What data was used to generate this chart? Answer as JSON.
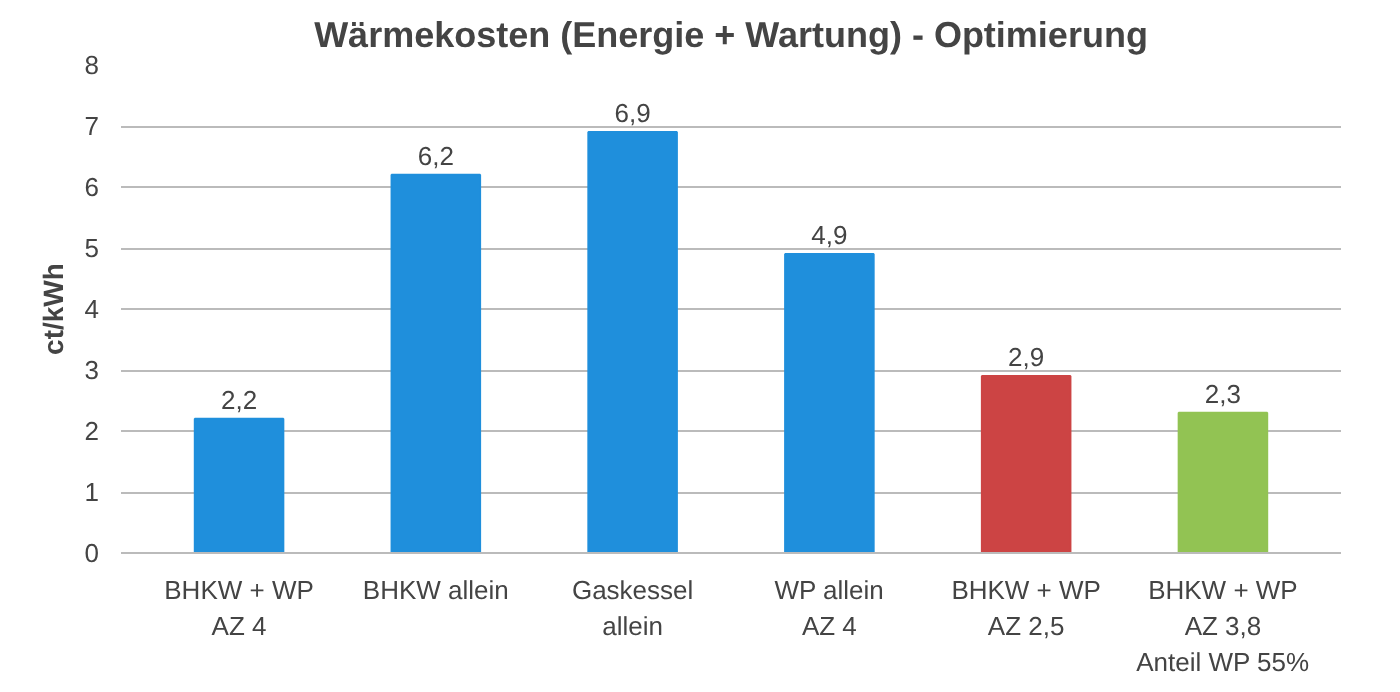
{
  "chart_data": {
    "type": "bar",
    "title": "Wärmekosten (Energie + Wartung) - Optimierung",
    "ylabel": "ct/kWh",
    "categories": [
      "BHKW + WP\nAZ 4",
      "BHKW allein",
      "Gaskessel\nallein",
      "WP allein\nAZ 4",
      "BHKW + WP\nAZ 2,5",
      "BHKW + WP\nAZ 3,8\nAnteil WP 55%"
    ],
    "values": [
      2.2,
      6.2,
      6.9,
      4.9,
      2.9,
      2.3
    ],
    "colors": [
      "#1f8fdc",
      "#1f8fdc",
      "#1f8fdc",
      "#1f8fdc",
      "#cc4444",
      "#92c353"
    ],
    "value_labels": [
      "2,2",
      "6,2",
      "6,9",
      "4,9",
      "2,9",
      "2,3"
    ],
    "ylim": [
      0,
      8
    ],
    "yticks": [
      0,
      1,
      2,
      3,
      4,
      5,
      6,
      7,
      8
    ],
    "grid": "y"
  }
}
